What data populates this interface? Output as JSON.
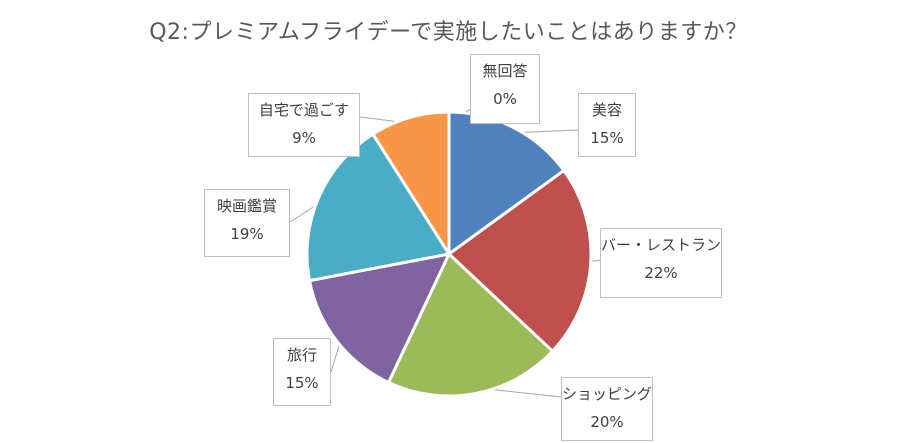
{
  "chart_data": {
    "type": "pie",
    "title": "Q2:プレミアムフライデーで実施したいことはありますか？",
    "start_angle_deg": 0,
    "direction": "clockwise",
    "slices": [
      {
        "label": "美容",
        "value": 15,
        "value_label": "15%",
        "color": "#4F81BD"
      },
      {
        "label": "バー・レストラン",
        "value": 22,
        "value_label": "22%",
        "color": "#C0504D"
      },
      {
        "label": "ショッピング",
        "value": 20,
        "value_label": "20%",
        "color": "#9BBB59"
      },
      {
        "label": "旅行",
        "value": 15,
        "value_label": "15%",
        "color": "#8064A2"
      },
      {
        "label": "映画鑑賞",
        "value": 19,
        "value_label": "19%",
        "color": "#4BACC6"
      },
      {
        "label": "自宅で過ごす",
        "value": 9,
        "value_label": "9%",
        "color": "#F79646"
      },
      {
        "label": "無回答",
        "value": 0,
        "value_label": "0%",
        "color": "#2C4D75"
      }
    ]
  }
}
